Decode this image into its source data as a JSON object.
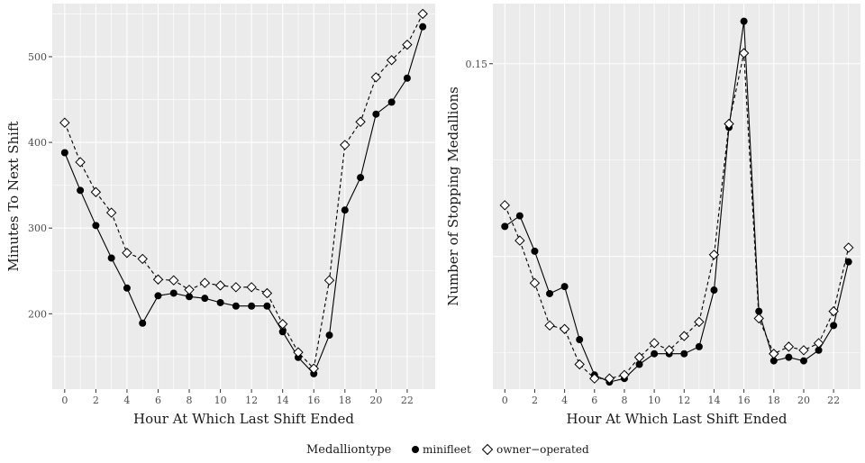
{
  "chart_data": [
    {
      "type": "line",
      "xlabel": "Hour At Which Last Shift Ended",
      "ylabel": "Minutes To Next Shift",
      "x": [
        0,
        1,
        2,
        3,
        4,
        5,
        6,
        7,
        8,
        9,
        10,
        11,
        12,
        13,
        14,
        15,
        16,
        17,
        18,
        19,
        20,
        21,
        22,
        23
      ],
      "xticks": [
        0,
        2,
        4,
        6,
        8,
        10,
        12,
        14,
        16,
        18,
        20,
        22
      ],
      "yticks": [
        200,
        300,
        400,
        500
      ],
      "xlim": [
        -0.8,
        23.8
      ],
      "ylim": [
        112,
        562
      ],
      "grid": true,
      "series": [
        {
          "name": "minifleet",
          "values": [
            388,
            344,
            303,
            265,
            230,
            189,
            221,
            224,
            220,
            218,
            213,
            209,
            209,
            209,
            179,
            149,
            130,
            175,
            321,
            359,
            433,
            447,
            475,
            535
          ]
        },
        {
          "name": "owner-operated",
          "values": [
            423,
            377,
            342,
            318,
            271,
            264,
            240,
            239,
            228,
            236,
            233,
            231,
            231,
            224,
            188,
            155,
            136,
            239,
            397,
            424,
            476,
            496,
            514,
            550
          ]
        }
      ]
    },
    {
      "type": "line",
      "xlabel": "Hour At Which Last Shift Ended",
      "ylabel": "Number of Stopping Medallions",
      "x": [
        0,
        1,
        2,
        3,
        4,
        5,
        6,
        7,
        8,
        9,
        10,
        11,
        12,
        13,
        14,
        15,
        16,
        17,
        18,
        19,
        20,
        21,
        22,
        23
      ],
      "xticks": [
        0,
        2,
        4,
        6,
        8,
        10,
        12,
        14,
        16,
        18,
        20,
        22
      ],
      "yticks": [
        0.15
      ],
      "ytick_labels": [
        "0.15"
      ],
      "xlim": [
        -0.8,
        23.8
      ],
      "ylim": [
        0.058,
        0.167
      ],
      "grid": true,
      "series": [
        {
          "name": "minifleet",
          "values": [
            0.104,
            0.107,
            0.097,
            0.085,
            0.087,
            0.072,
            0.062,
            0.06,
            0.061,
            0.065,
            0.068,
            0.068,
            0.068,
            0.07,
            0.086,
            0.132,
            0.162,
            0.08,
            0.066,
            0.067,
            0.066,
            0.069,
            0.076,
            0.094
          ]
        },
        {
          "name": "owner-operated",
          "values": [
            0.11,
            0.1,
            0.088,
            0.076,
            0.075,
            0.065,
            0.061,
            0.061,
            0.062,
            0.067,
            0.071,
            0.069,
            0.073,
            0.077,
            0.096,
            0.133,
            0.153,
            0.078,
            0.068,
            0.07,
            0.069,
            0.071,
            0.08,
            0.098
          ]
        }
      ]
    }
  ],
  "legend": {
    "title": "Medalliontype",
    "items": [
      {
        "label": "minifleet",
        "marker": "filled-circle"
      },
      {
        "label": "owner−operated",
        "marker": "open-diamond"
      }
    ]
  },
  "colors": {
    "panel_background": "#ebebeb",
    "grid": "#ffffff",
    "line": "#000000"
  }
}
